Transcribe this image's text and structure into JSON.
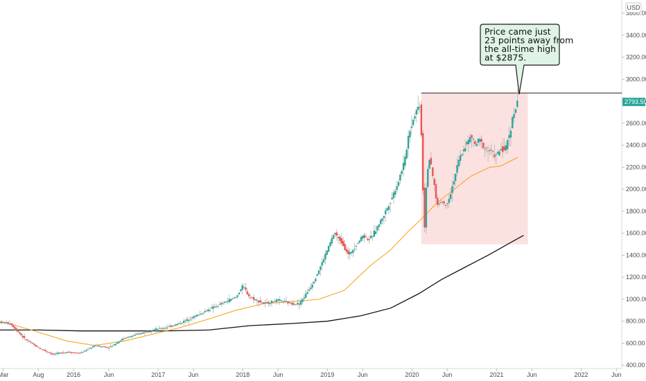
{
  "chart_data": {
    "type": "candlestick",
    "currency": "USD",
    "x_ticks": [
      "Mar",
      "Aug",
      "2016",
      "Jun",
      "2017",
      "Jun",
      "2018",
      "Jun",
      "2019",
      "Jun",
      "2020",
      "Jun",
      "2021",
      "Jun",
      "2022",
      "Jun"
    ],
    "y_ticks": [
      "3600.00",
      "3400.00",
      "3200.00",
      "3000.00",
      "2800.00",
      "2600.00",
      "2400.00",
      "2200.00",
      "2000.00",
      "1800.00",
      "1600.00",
      "1400.00",
      "1200.00",
      "1000.00",
      "800.00",
      "600.00",
      "400.00"
    ],
    "y_range": [
      370,
      3720
    ],
    "x_range": [
      2015.13,
      2022.48
    ],
    "last_price": "2793.50",
    "ath_level": 2875,
    "highlight_box": {
      "x_from": 2020.11,
      "x_to": 2021.37,
      "y_from": 1500,
      "y_to": 2875
    },
    "annotation": {
      "lines": [
        "Price came just",
        "23 points away from",
        "the all-time high",
        "at $2875."
      ]
    },
    "price_path": [
      [
        2015.13,
        790
      ],
      [
        2015.25,
        780
      ],
      [
        2015.42,
        640
      ],
      [
        2015.58,
        560
      ],
      [
        2015.75,
        500
      ],
      [
        2015.92,
        520
      ],
      [
        2016.08,
        510
      ],
      [
        2016.25,
        580
      ],
      [
        2016.42,
        560
      ],
      [
        2016.58,
        640
      ],
      [
        2016.75,
        680
      ],
      [
        2016.92,
        720
      ],
      [
        2017.08,
        740
      ],
      [
        2017.25,
        780
      ],
      [
        2017.42,
        840
      ],
      [
        2017.58,
        900
      ],
      [
        2017.75,
        960
      ],
      [
        2017.92,
        1020
      ],
      [
        2018.0,
        1120
      ],
      [
        2018.08,
        1020
      ],
      [
        2018.25,
        960
      ],
      [
        2018.42,
        990
      ],
      [
        2018.58,
        960
      ],
      [
        2018.67,
        960
      ],
      [
        2018.75,
        1050
      ],
      [
        2018.83,
        1150
      ],
      [
        2018.92,
        1300
      ],
      [
        2019.0,
        1450
      ],
      [
        2019.08,
        1600
      ],
      [
        2019.17,
        1520
      ],
      [
        2019.25,
        1400
      ],
      [
        2019.42,
        1580
      ],
      [
        2019.5,
        1540
      ],
      [
        2019.58,
        1640
      ],
      [
        2019.67,
        1770
      ],
      [
        2019.75,
        1900
      ],
      [
        2019.83,
        2050
      ],
      [
        2019.92,
        2280
      ],
      [
        2019.96,
        2500
      ],
      [
        2020.04,
        2700
      ],
      [
        2020.1,
        2780
      ],
      [
        2020.13,
        2000
      ],
      [
        2020.15,
        1650
      ],
      [
        2020.17,
        2050
      ],
      [
        2020.2,
        2300
      ],
      [
        2020.25,
        2100
      ],
      [
        2020.3,
        1850
      ],
      [
        2020.35,
        1900
      ],
      [
        2020.4,
        1850
      ],
      [
        2020.45,
        1950
      ],
      [
        2020.5,
        2100
      ],
      [
        2020.55,
        2250
      ],
      [
        2020.6,
        2350
      ],
      [
        2020.65,
        2420
      ],
      [
        2020.7,
        2480
      ],
      [
        2020.75,
        2400
      ],
      [
        2020.8,
        2450
      ],
      [
        2020.85,
        2380
      ],
      [
        2020.92,
        2350
      ],
      [
        2021.0,
        2300
      ],
      [
        2021.05,
        2370
      ],
      [
        2021.1,
        2350
      ],
      [
        2021.15,
        2500
      ],
      [
        2021.2,
        2680
      ],
      [
        2021.25,
        2793
      ]
    ],
    "ma_fast": [
      [
        2015.13,
        800
      ],
      [
        2015.5,
        720
      ],
      [
        2015.92,
        620
      ],
      [
        2016.25,
        580
      ],
      [
        2016.6,
        620
      ],
      [
        2016.92,
        680
      ],
      [
        2017.25,
        740
      ],
      [
        2017.6,
        820
      ],
      [
        2017.92,
        900
      ],
      [
        2018.25,
        960
      ],
      [
        2018.6,
        980
      ],
      [
        2018.9,
        1000
      ],
      [
        2019.2,
        1080
      ],
      [
        2019.5,
        1300
      ],
      [
        2019.75,
        1450
      ],
      [
        2019.96,
        1620
      ],
      [
        2020.1,
        1720
      ],
      [
        2020.3,
        1880
      ],
      [
        2020.5,
        2000
      ],
      [
        2020.7,
        2120
      ],
      [
        2020.92,
        2200
      ],
      [
        2021.05,
        2210
      ],
      [
        2021.25,
        2290
      ]
    ],
    "ma_slow": [
      [
        2015.13,
        720
      ],
      [
        2015.6,
        720
      ],
      [
        2016.08,
        712
      ],
      [
        2016.6,
        712
      ],
      [
        2017.08,
        712
      ],
      [
        2017.6,
        720
      ],
      [
        2018.08,
        760
      ],
      [
        2018.6,
        780
      ],
      [
        2019.0,
        800
      ],
      [
        2019.4,
        850
      ],
      [
        2019.75,
        920
      ],
      [
        2020.08,
        1050
      ],
      [
        2020.35,
        1180
      ],
      [
        2020.6,
        1280
      ],
      [
        2020.9,
        1400
      ],
      [
        2021.2,
        1530
      ],
      [
        2021.32,
        1580
      ]
    ]
  },
  "colors": {
    "up": "#26a69a",
    "down": "#ef5350",
    "wick": "#b0b0b0",
    "ma_fast": "#f5a623",
    "ma_slow": "#111111",
    "box": "#fbdcdc",
    "note_bg": "#dff3e6",
    "price_tag": "#26a69a"
  }
}
